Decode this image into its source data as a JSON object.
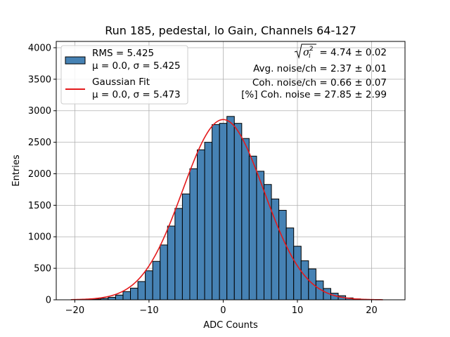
{
  "chart_data": {
    "type": "bar",
    "title": "Run 185, pedestal, lo Gain, Channels 64-127",
    "xlabel": "ADC Counts",
    "ylabel": "Entries",
    "xlim": [
      -22.5,
      24.5
    ],
    "ylim": [
      0,
      4100
    ],
    "xticks": [
      -20,
      -10,
      0,
      10,
      20
    ],
    "yticks": [
      0,
      500,
      1000,
      1500,
      2000,
      2500,
      3000,
      3500,
      4000
    ],
    "grid": true,
    "legend_position": "top-left",
    "bin_width": 1,
    "bins": [
      {
        "x": -20,
        "y": 2
      },
      {
        "x": -19,
        "y": 4
      },
      {
        "x": -18,
        "y": 7
      },
      {
        "x": -17,
        "y": 12
      },
      {
        "x": -16,
        "y": 22
      },
      {
        "x": -15,
        "y": 40
      },
      {
        "x": -14,
        "y": 75
      },
      {
        "x": -13,
        "y": 130
      },
      {
        "x": -12,
        "y": 185
      },
      {
        "x": -11,
        "y": 290
      },
      {
        "x": -10,
        "y": 460
      },
      {
        "x": -9,
        "y": 610
      },
      {
        "x": -8,
        "y": 870
      },
      {
        "x": -7,
        "y": 1170
      },
      {
        "x": -6,
        "y": 1450
      },
      {
        "x": -5,
        "y": 1680
      },
      {
        "x": -4,
        "y": 2080
      },
      {
        "x": -3,
        "y": 2380
      },
      {
        "x": -2,
        "y": 2500
      },
      {
        "x": -1,
        "y": 2780
      },
      {
        "x": 0,
        "y": 2800
      },
      {
        "x": 1,
        "y": 2910
      },
      {
        "x": 2,
        "y": 2800
      },
      {
        "x": 3,
        "y": 2560
      },
      {
        "x": 4,
        "y": 2280
      },
      {
        "x": 5,
        "y": 2040
      },
      {
        "x": 6,
        "y": 1830
      },
      {
        "x": 7,
        "y": 1600
      },
      {
        "x": 8,
        "y": 1420
      },
      {
        "x": 9,
        "y": 1140
      },
      {
        "x": 10,
        "y": 850
      },
      {
        "x": 11,
        "y": 620
      },
      {
        "x": 12,
        "y": 490
      },
      {
        "x": 13,
        "y": 300
      },
      {
        "x": 14,
        "y": 180
      },
      {
        "x": 15,
        "y": 105
      },
      {
        "x": 16,
        "y": 65
      },
      {
        "x": 17,
        "y": 30
      },
      {
        "x": 18,
        "y": 14
      },
      {
        "x": 19,
        "y": 6
      },
      {
        "x": 20,
        "y": 3
      },
      {
        "x": 21,
        "y": 1
      }
    ],
    "series": [
      {
        "name": "RMS = 5.425",
        "subtitle": "μ = 0.0, σ = 5.425",
        "kind": "histogram",
        "color": "#4682b4",
        "edge_color": "#000000"
      },
      {
        "name": "Gaussian Fit",
        "subtitle": "μ = 0.0, σ = 5.473",
        "kind": "line",
        "color": "#e41a1c",
        "mu": 0.0,
        "sigma": 5.473,
        "amplitude": 2860,
        "x_range": [
          -20.5,
          21.5
        ]
      }
    ],
    "annotations": [
      {
        "id": "sigma",
        "text": "= 4.74 ± 0.02"
      },
      {
        "id": "avg",
        "text": "Avg. noise/ch = 2.37 ± 0.01"
      },
      {
        "id": "coh",
        "text": "Coh. noise/ch = 0.66 ± 0.07"
      },
      {
        "id": "pct",
        "text": "[%] Coh. noise = 27.85 ± 2.99"
      }
    ]
  }
}
